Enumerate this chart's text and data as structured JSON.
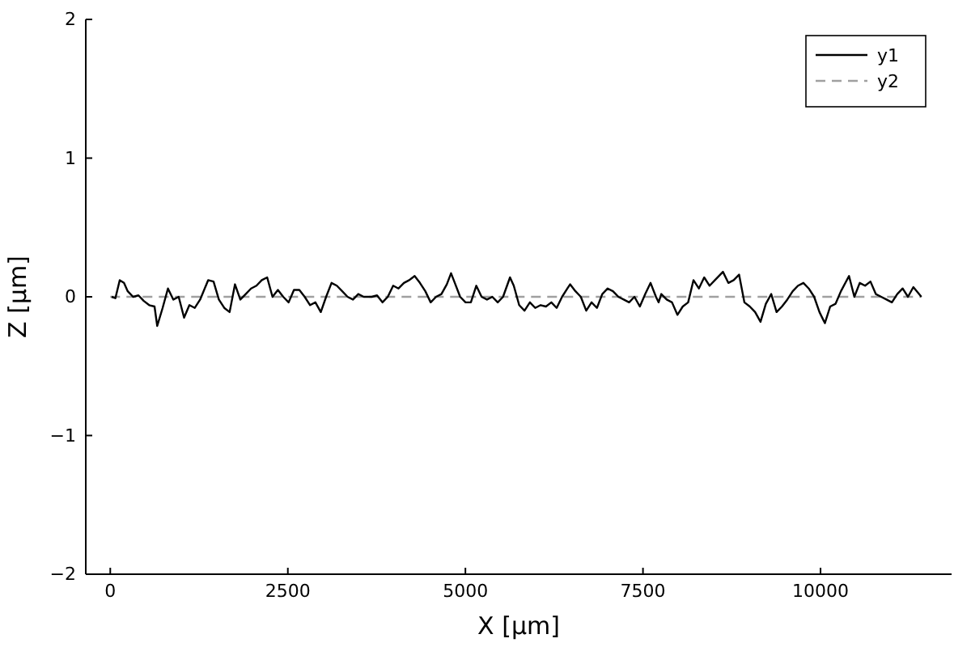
{
  "chart_data": {
    "type": "line",
    "xlabel": "X [µm]",
    "ylabel": "Z [µm]",
    "xlim": [
      -345,
      11845
    ],
    "ylim": [
      -2,
      2
    ],
    "xticks": [
      0,
      2500,
      5000,
      7500,
      10000
    ],
    "yticks": [
      {
        "value": -2,
        "label": "−2"
      },
      {
        "value": -1,
        "label": "−1"
      },
      0,
      1,
      2
    ],
    "grid": false,
    "legend": "top right",
    "series": [
      {
        "name": "y1",
        "color": "#000000",
        "line_style": "solid",
        "x": [
          19,
          72,
          133,
          193,
          246,
          321,
          397,
          472,
          548,
          623,
          661,
          737,
          812,
          888,
          963,
          1039,
          1114,
          1190,
          1265,
          1378,
          1454,
          1529,
          1605,
          1680,
          1756,
          1831,
          1907,
          1982,
          2058,
          2133,
          2209,
          2284,
          2360,
          2435,
          2511,
          2586,
          2662,
          2737,
          2813,
          2888,
          2964,
          3039,
          3115,
          3190,
          3266,
          3341,
          3417,
          3492,
          3568,
          3681,
          3756,
          3832,
          3907,
          3983,
          4058,
          4134,
          4209,
          4285,
          4360,
          4436,
          4511,
          4587,
          4662,
          4738,
          4798,
          4851,
          4926,
          5002,
          5077,
          5153,
          5228,
          5304,
          5379,
          5455,
          5530,
          5628,
          5681,
          5757,
          5832,
          5908,
          5983,
          6059,
          6134,
          6210,
          6285,
          6361,
          6436,
          6474,
          6550,
          6625,
          6701,
          6776,
          6852,
          6927,
          7003,
          7078,
          7154,
          7229,
          7305,
          7380,
          7456,
          7532,
          7607,
          7683,
          7720,
          7758,
          7834,
          7909,
          7985,
          8060,
          8136,
          8211,
          8287,
          8362,
          8438,
          8513,
          8626,
          8702,
          8777,
          8853,
          8928,
          9004,
          9079,
          9155,
          9230,
          9306,
          9381,
          9457,
          9532,
          9608,
          9683,
          9759,
          9834,
          9910,
          9985,
          10061,
          10136,
          10212,
          10287,
          10401,
          10476,
          10552,
          10627,
          10703,
          10778,
          10854,
          10929,
          11005,
          11080,
          11156,
          11231,
          11307,
          11420
        ],
        "values": [
          0,
          -0.01,
          0.12,
          0.1,
          0.04,
          0,
          0.01,
          -0.03,
          -0.06,
          -0.07,
          -0.21,
          -0.08,
          0.06,
          -0.02,
          0,
          -0.15,
          -0.06,
          -0.08,
          -0.02,
          0.12,
          0.11,
          -0.02,
          -0.08,
          -0.11,
          0.09,
          -0.02,
          0.02,
          0.06,
          0.08,
          0.12,
          0.14,
          0,
          0.05,
          0,
          -0.04,
          0.05,
          0.05,
          0,
          -0.06,
          -0.04,
          -0.11,
          0,
          0.1,
          0.08,
          0.04,
          0,
          -0.02,
          0.02,
          0,
          0,
          0.01,
          -0.04,
          0,
          0.08,
          0.06,
          0.1,
          0.12,
          0.15,
          0.1,
          0.04,
          -0.04,
          0,
          0.02,
          0.09,
          0.17,
          0.1,
          0,
          -0.04,
          -0.04,
          0.08,
          0,
          -0.02,
          0,
          -0.04,
          0,
          0.14,
          0.08,
          -0.06,
          -0.1,
          -0.04,
          -0.08,
          -0.06,
          -0.07,
          -0.04,
          -0.08,
          0,
          0.06,
          0.09,
          0.04,
          0,
          -0.1,
          -0.04,
          -0.08,
          0.02,
          0.06,
          0.04,
          0,
          -0.02,
          -0.04,
          0,
          -0.07,
          0.02,
          0.1,
          0,
          -0.04,
          0.02,
          -0.02,
          -0.04,
          -0.13,
          -0.07,
          -0.04,
          0.12,
          0.06,
          0.14,
          0.08,
          0.12,
          0.18,
          0.1,
          0.12,
          0.16,
          -0.04,
          -0.07,
          -0.11,
          -0.18,
          -0.05,
          0.02,
          -0.11,
          -0.07,
          -0.02,
          0.04,
          0.08,
          0.1,
          0.06,
          0,
          -0.11,
          -0.19,
          -0.07,
          -0.05,
          0.04,
          0.15,
          0,
          0.1,
          0.08,
          0.11,
          0.02,
          0,
          -0.02,
          -0.04,
          0.02,
          0.06,
          0,
          0.07,
          0
        ]
      },
      {
        "name": "y2",
        "color": "#a0a0a0",
        "line_style": "dashed",
        "x": [
          0,
          11420
        ],
        "values": [
          0,
          0
        ]
      }
    ]
  }
}
